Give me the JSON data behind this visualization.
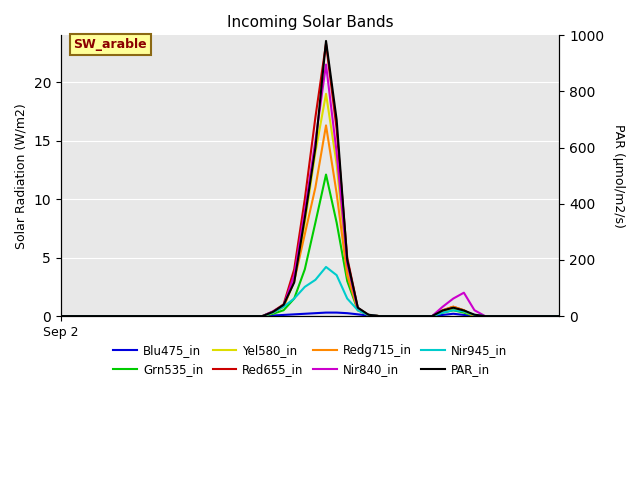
{
  "title": "Incoming Solar Bands",
  "xlabel": "",
  "ylabel_left": "Solar Radiation (W/m2)",
  "ylabel_right": "PAR (μmol/m2/s)",
  "x_label_tick": "Sep 2",
  "annotation": "SW_arable",
  "ylim_left": [
    0,
    24
  ],
  "ylim_right": [
    0,
    1000
  ],
  "background_color": "#e8e8e8",
  "series": {
    "Blu475_in": {
      "color": "#0000dd",
      "values": [
        0,
        0,
        0,
        0,
        0,
        0,
        0,
        0,
        0,
        0,
        0,
        0,
        0,
        0,
        0,
        0,
        0,
        0,
        0,
        0,
        0.05,
        0.1,
        0.15,
        0.2,
        0.25,
        0.3,
        0.3,
        0.25,
        0.15,
        0.05,
        0,
        0,
        0,
        0,
        0,
        0,
        0.1,
        0.2,
        0.1,
        0,
        0,
        0,
        0,
        0,
        0,
        0,
        0,
        0
      ]
    },
    "Grn535_in": {
      "color": "#00cc00",
      "values": [
        0,
        0,
        0,
        0,
        0,
        0,
        0,
        0,
        0,
        0,
        0,
        0,
        0,
        0,
        0,
        0,
        0,
        0,
        0,
        0,
        0.2,
        0.5,
        1.5,
        4.0,
        8.0,
        12.1,
        8.0,
        3.0,
        0.5,
        0.1,
        0,
        0,
        0,
        0,
        0,
        0,
        0.3,
        0.5,
        0.3,
        0,
        0,
        0,
        0,
        0,
        0,
        0,
        0,
        0
      ]
    },
    "Yel580_in": {
      "color": "#dddd00",
      "values": [
        0,
        0,
        0,
        0,
        0,
        0,
        0,
        0,
        0,
        0,
        0,
        0,
        0,
        0,
        0,
        0,
        0,
        0,
        0,
        0,
        0.3,
        0.8,
        3.0,
        8.0,
        14.0,
        19.0,
        13.0,
        4.0,
        0.6,
        0.1,
        0,
        0,
        0,
        0,
        0,
        0,
        0.4,
        0.7,
        0.4,
        0,
        0,
        0,
        0,
        0,
        0,
        0,
        0,
        0
      ]
    },
    "Red655_in": {
      "color": "#cc0000",
      "values": [
        0,
        0,
        0,
        0,
        0,
        0,
        0,
        0,
        0,
        0,
        0,
        0,
        0,
        0,
        0,
        0,
        0,
        0,
        0,
        0,
        0.4,
        1.0,
        4.0,
        10.0,
        17.0,
        23.3,
        16.0,
        5.0,
        0.7,
        0.1,
        0,
        0,
        0,
        0,
        0,
        0,
        0.5,
        0.8,
        0.5,
        0,
        0,
        0,
        0,
        0,
        0,
        0,
        0,
        0
      ]
    },
    "Redg715_in": {
      "color": "#ff8800",
      "values": [
        0,
        0,
        0,
        0,
        0,
        0,
        0,
        0,
        0,
        0,
        0,
        0,
        0,
        0,
        0,
        0,
        0,
        0,
        0,
        0,
        0.3,
        0.8,
        3.0,
        7.0,
        11.0,
        16.3,
        10.5,
        3.5,
        0.5,
        0.1,
        0,
        0,
        0,
        0,
        0,
        0,
        0.5,
        0.8,
        0.5,
        0,
        0,
        0,
        0,
        0,
        0,
        0,
        0,
        0
      ]
    },
    "Nir840_in": {
      "color": "#cc00cc",
      "values": [
        0,
        0,
        0,
        0,
        0,
        0,
        0,
        0,
        0,
        0,
        0,
        0,
        0,
        0,
        0,
        0,
        0,
        0,
        0,
        0,
        0.4,
        0.9,
        3.5,
        9.0,
        15.0,
        21.5,
        14.0,
        4.5,
        0.6,
        0.1,
        0,
        0,
        0,
        0,
        0,
        0,
        0.8,
        1.5,
        2.0,
        0.5,
        0,
        0,
        0,
        0,
        0,
        0,
        0,
        0
      ]
    },
    "Nir945_in": {
      "color": "#00cccc",
      "values": [
        0,
        0,
        0,
        0,
        0,
        0,
        0,
        0,
        0,
        0,
        0,
        0,
        0,
        0,
        0,
        0,
        0,
        0,
        0,
        0,
        0.3,
        0.8,
        1.5,
        2.5,
        3.1,
        4.2,
        3.5,
        1.5,
        0.5,
        0.1,
        0,
        0,
        0,
        0,
        0,
        0,
        0.3,
        0.5,
        0.4,
        0.1,
        0,
        0,
        0,
        0,
        0,
        0,
        0,
        0
      ]
    },
    "PAR_in": {
      "color": "#000000",
      "values": [
        0,
        0,
        0,
        0,
        0,
        0,
        0,
        0,
        0,
        0,
        0,
        0,
        0,
        0,
        0,
        0,
        0,
        0,
        0,
        0,
        15,
        40,
        120,
        350,
        600,
        980,
        700,
        200,
        30,
        5,
        0,
        0,
        0,
        0,
        0,
        0,
        20,
        30,
        20,
        5,
        0,
        0,
        0,
        0,
        0,
        0,
        0,
        0
      ]
    }
  },
  "num_points": 48,
  "annotation_color": "#8b0000",
  "annotation_bg": "#ffff99",
  "annotation_border": "#8b6914",
  "legend_order": [
    "Blu475_in",
    "Grn535_in",
    "Yel580_in",
    "Red655_in",
    "Redg715_in",
    "Nir840_in",
    "Nir945_in",
    "PAR_in"
  ]
}
